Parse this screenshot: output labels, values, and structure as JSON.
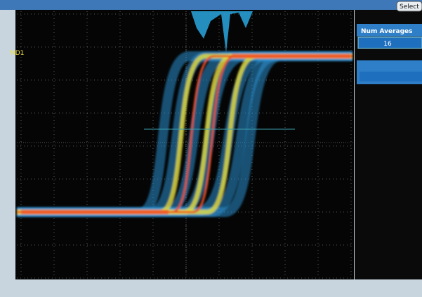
{
  "screen": {
    "marker": "MD1"
  },
  "menu": {
    "button": "Select",
    "label": "Num Averages",
    "value": "16"
  }
}
